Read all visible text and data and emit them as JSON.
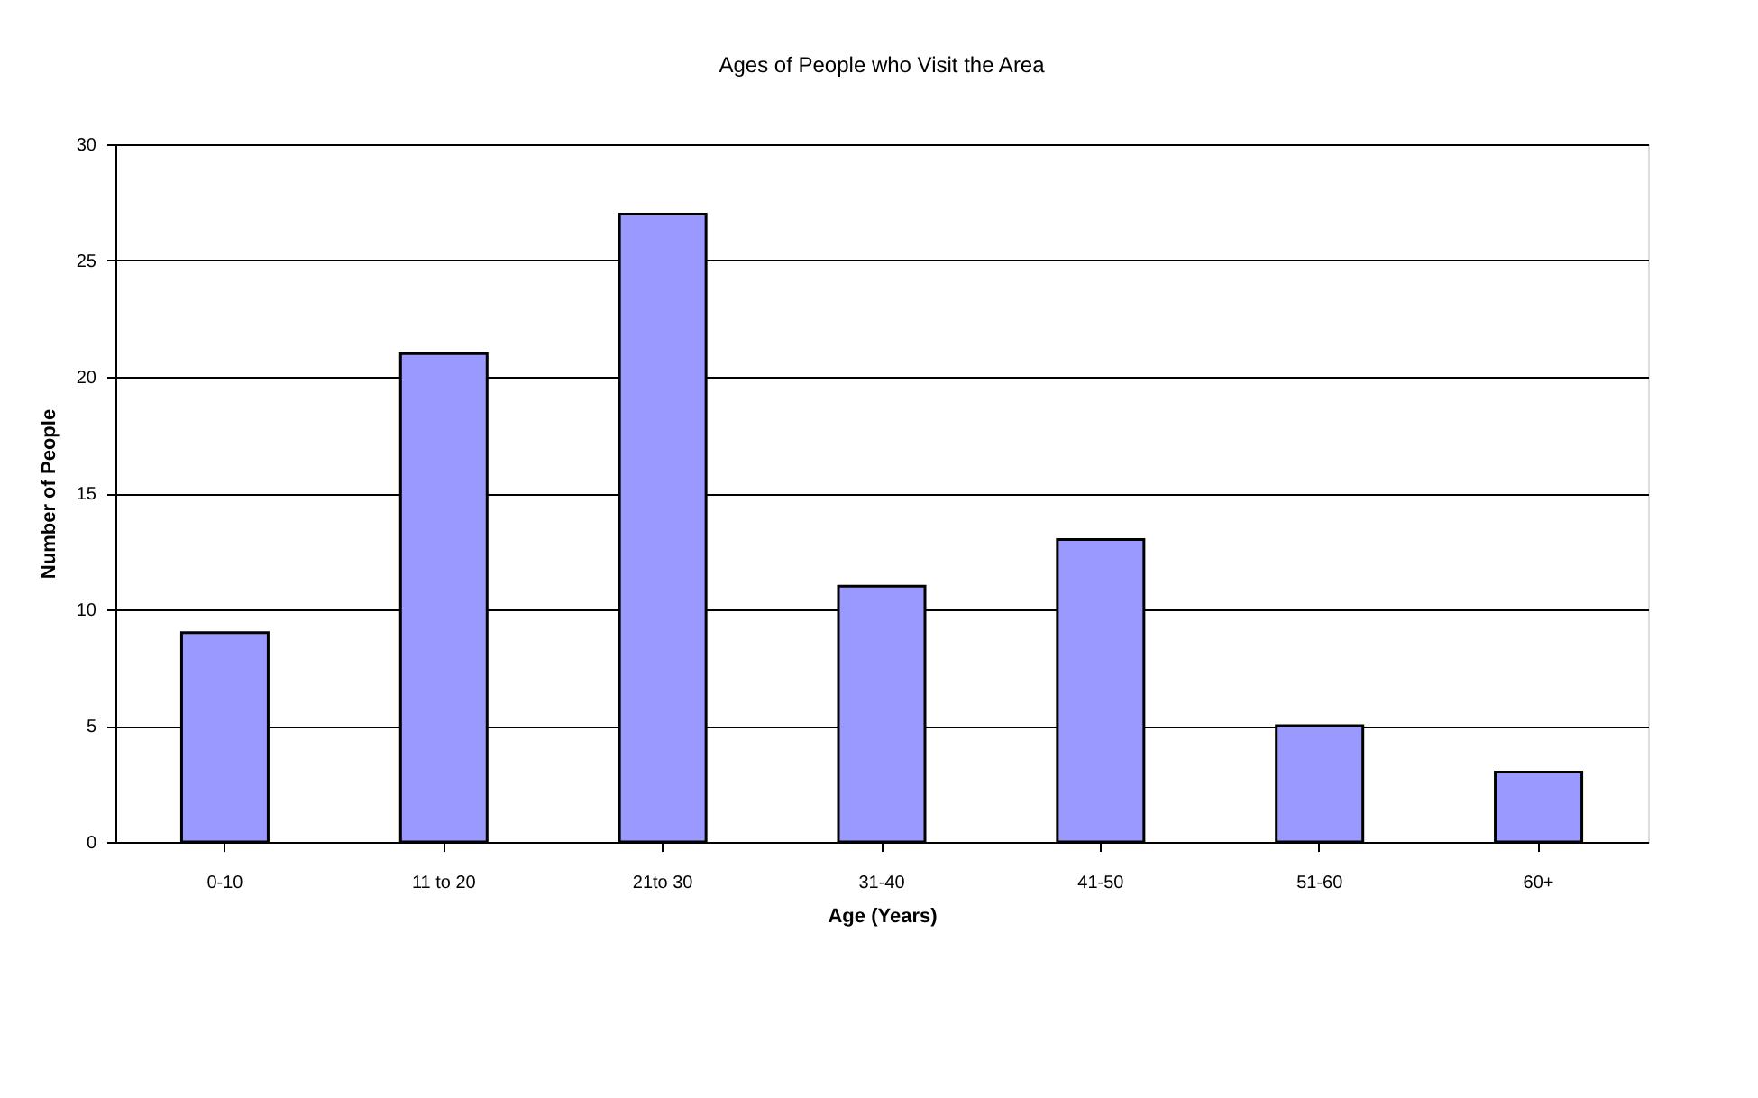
{
  "chart_data": {
    "type": "bar",
    "title": "Ages of People who Visit the Area",
    "xlabel": "Age (Years)",
    "ylabel": "Number of People",
    "categories": [
      "0-10",
      "11 to 20",
      "21to 30",
      "31-40",
      "41-50",
      "51-60",
      "60+"
    ],
    "values": [
      9,
      21,
      27,
      11,
      13,
      5,
      3
    ],
    "color": "#9999ff",
    "ylim": [
      0,
      30
    ],
    "yticks": [
      0,
      5,
      10,
      15,
      20,
      25,
      30
    ],
    "grid": "y"
  }
}
